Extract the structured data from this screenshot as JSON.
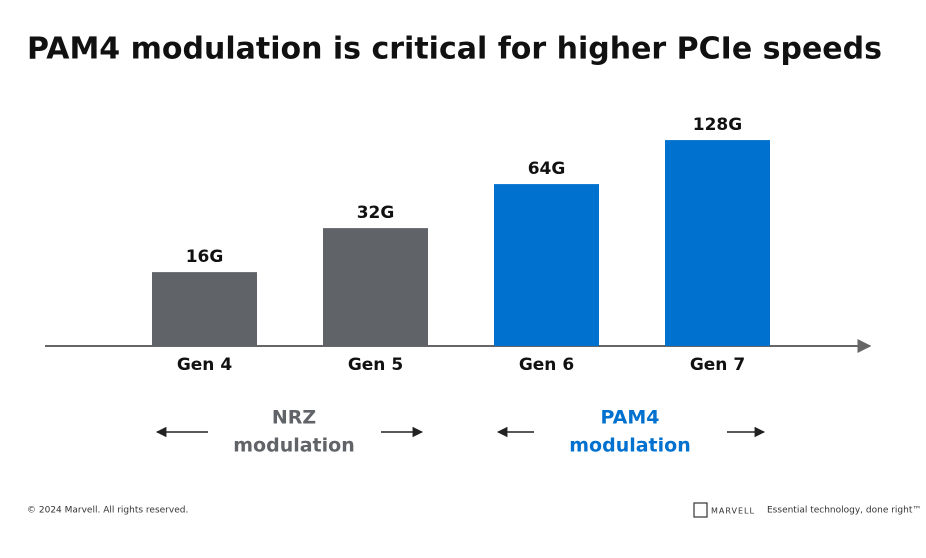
{
  "chart_data": {
    "type": "bar",
    "title": "PAM4 modulation is critical for higher PCIe speeds",
    "categories": [
      "Gen 4",
      "Gen 5",
      "Gen 6",
      "Gen 7"
    ],
    "values": [
      16,
      32,
      64,
      128
    ],
    "value_labels": [
      "16G",
      "32G",
      "64G",
      "128G"
    ],
    "colors": [
      "#606367",
      "#606367",
      "#0071ce",
      "#0071ce"
    ],
    "log_scale": true,
    "ylim": [
      5,
      150
    ],
    "annotations": [
      {
        "lines": [
          "NRZ",
          "modulation"
        ],
        "color": "#606367"
      },
      {
        "lines": [
          "PAM4",
          "modulation"
        ],
        "color": "#0071ce"
      }
    ]
  },
  "footer": {
    "copyright": "© 2024 Marvell. All rights reserved.",
    "brand": "MARVELL",
    "tagline": "Essential technology, done right™"
  }
}
